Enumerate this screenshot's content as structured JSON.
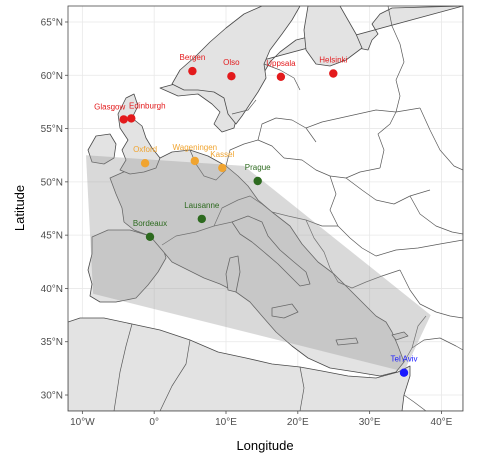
{
  "chart_data": {
    "type": "scatter",
    "title": "",
    "xlabel": "Longitude",
    "ylabel": "Latitude",
    "xlim": [
      -12,
      43
    ],
    "ylim": [
      28.5,
      66.5
    ],
    "x_ticks": [
      {
        "value": -10,
        "label": "10°W"
      },
      {
        "value": 0,
        "label": "0°"
      },
      {
        "value": 10,
        "label": "10°E"
      },
      {
        "value": 20,
        "label": "20°E"
      },
      {
        "value": 30,
        "label": "30°E"
      },
      {
        "value": 40,
        "label": "40°E"
      }
    ],
    "y_ticks": [
      {
        "value": 30,
        "label": "30°N"
      },
      {
        "value": 35,
        "label": "35°N"
      },
      {
        "value": 40,
        "label": "40°N"
      },
      {
        "value": 45,
        "label": "45°N"
      },
      {
        "value": 50,
        "label": "50°N"
      },
      {
        "value": 55,
        "label": "55°N"
      },
      {
        "value": 60,
        "label": "60°N"
      },
      {
        "value": 65,
        "label": "65°N"
      }
    ],
    "grid": true,
    "legend": "none",
    "colors": {
      "red": "#e31a1c",
      "orange": "#f0a430",
      "green": "#2d6a1f",
      "blue": "#1a1aff",
      "hull": "#9a9a9a",
      "land": "#e3e3e3",
      "water": "#ffffff"
    },
    "points": [
      {
        "label": "Glasgow",
        "lon": -4.25,
        "lat": 55.86,
        "color": "red"
      },
      {
        "label": "Edinburgh",
        "lon": -3.19,
        "lat": 55.95,
        "color": "red"
      },
      {
        "label": "Bergen",
        "lon": 5.32,
        "lat": 60.39,
        "color": "red"
      },
      {
        "label": "Olso",
        "lon": 10.75,
        "lat": 59.91,
        "color": "red"
      },
      {
        "label": "Uppsala",
        "lon": 17.64,
        "lat": 59.86,
        "color": "red"
      },
      {
        "label": "Helsinki",
        "lon": 24.94,
        "lat": 60.17,
        "color": "red"
      },
      {
        "label": "Oxford",
        "lon": -1.26,
        "lat": 51.75,
        "color": "orange"
      },
      {
        "label": "Wageningen",
        "lon": 5.66,
        "lat": 51.97,
        "color": "orange"
      },
      {
        "label": "Kassel",
        "lon": 9.48,
        "lat": 51.31,
        "color": "orange"
      },
      {
        "label": "Prague",
        "lon": 14.42,
        "lat": 50.08,
        "color": "green"
      },
      {
        "label": "Lausanne",
        "lon": 6.63,
        "lat": 46.52,
        "color": "green"
      },
      {
        "label": "Bordeaux",
        "lon": -0.58,
        "lat": 44.84,
        "color": "green"
      },
      {
        "label": "Tel Aviv",
        "lon": 34.78,
        "lat": 32.09,
        "color": "blue"
      }
    ],
    "hull": [
      {
        "lon": -9.5,
        "lat": 52.5
      },
      {
        "lon": 12.5,
        "lat": 51.5
      },
      {
        "lon": 38.5,
        "lat": 37.5
      },
      {
        "lon": 34.8,
        "lat": 32.2
      },
      {
        "lon": -8.5,
        "lat": 39.5
      }
    ]
  }
}
